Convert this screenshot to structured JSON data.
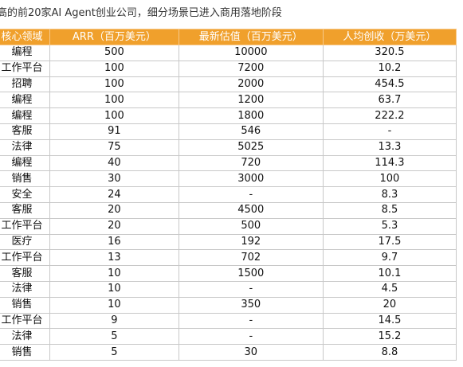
{
  "header": {
    "title": "高的前20家AI Agent创业公司，细分场景已进入商用落地阶段"
  },
  "table": {
    "columns": [
      "核心领域",
      "ARR（百万美元）",
      "最新估值（百万美元）",
      "人均创收（万美元）"
    ],
    "rows": [
      [
        "编程",
        "500",
        "10000",
        "320.5"
      ],
      [
        "工作平台",
        "100",
        "7200",
        "10.2"
      ],
      [
        "招聘",
        "100",
        "2000",
        "454.5"
      ],
      [
        "编程",
        "100",
        "1200",
        "63.7"
      ],
      [
        "编程",
        "100",
        "1800",
        "222.2"
      ],
      [
        "客服",
        "91",
        "546",
        "-"
      ],
      [
        "法律",
        "75",
        "5025",
        "13.3"
      ],
      [
        "编程",
        "40",
        "720",
        "114.3"
      ],
      [
        "销售",
        "30",
        "3000",
        "100"
      ],
      [
        "安全",
        "24",
        "-",
        "8.3"
      ],
      [
        "客服",
        "20",
        "4500",
        "8.5"
      ],
      [
        "工作平台",
        "20",
        "500",
        "5.3"
      ],
      [
        "医疗",
        "16",
        "192",
        "17.5"
      ],
      [
        "工作平台",
        "13",
        "702",
        "9.7"
      ],
      [
        "客服",
        "10",
        "1500",
        "10.1"
      ],
      [
        "法律",
        "10",
        "-",
        "4.5"
      ],
      [
        "销售",
        "10",
        "350",
        "20"
      ],
      [
        "工作平台",
        "9",
        "-",
        "14.5"
      ],
      [
        "法律",
        "5",
        "-",
        "15.2"
      ],
      [
        "销售",
        "5",
        "30",
        "8.8"
      ]
    ]
  }
}
